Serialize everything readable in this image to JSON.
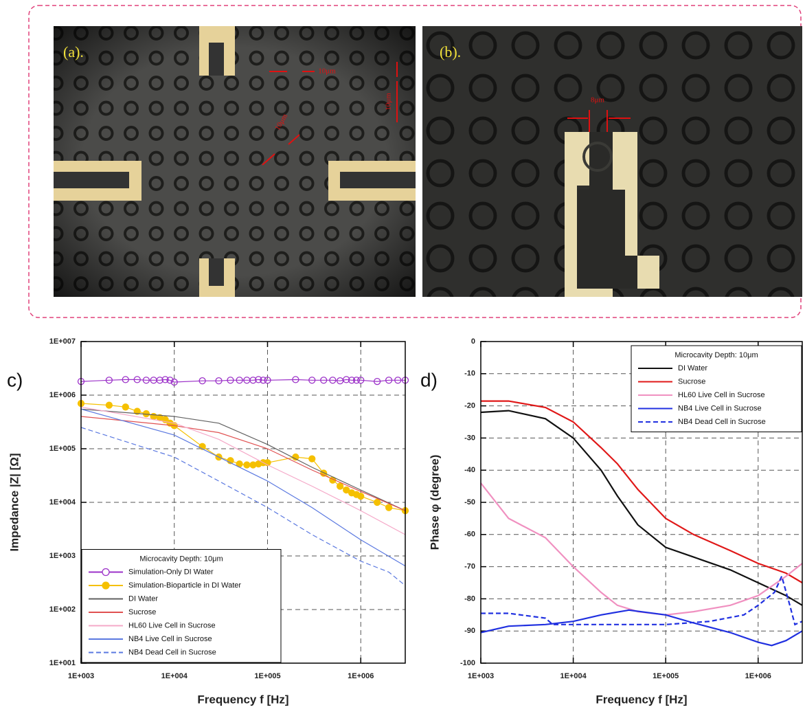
{
  "images": [
    {
      "label": "(a).",
      "annotations": [
        "10μm",
        "10μm",
        "10μm"
      ]
    },
    {
      "label": "(b).",
      "annotations": [
        "8μm"
      ]
    }
  ],
  "chart_data": [
    {
      "type": "line",
      "panel_label": "c)",
      "xlabel": "Frequency f [Hz]",
      "ylabel": "Impedance |Z| [Ω]",
      "xscale": "log",
      "yscale": "log",
      "grid": true,
      "legend": "lower left",
      "legend_title": "Microcavity Depth: 10μm",
      "xlim": [
        1000,
        3000000
      ],
      "ylim": [
        10,
        10000000
      ],
      "xticks": [
        {
          "value": 1000,
          "label": "1E+003"
        },
        {
          "value": 10000,
          "label": "1E+004"
        },
        {
          "value": 100000,
          "label": "1E+005"
        },
        {
          "value": 1000000,
          "label": "1E+006"
        }
      ],
      "yticks": [
        {
          "value": 10,
          "label": "1E+001"
        },
        {
          "value": 100,
          "label": "1E+002"
        },
        {
          "value": 1000,
          "label": "1E+003"
        },
        {
          "value": 10000,
          "label": "1E+004"
        },
        {
          "value": 100000,
          "label": "1E+005"
        },
        {
          "value": 1000000,
          "label": "1E+006"
        },
        {
          "value": 10000000,
          "label": "1E+007"
        }
      ],
      "series": [
        {
          "name": "Simulation-Only DI Water",
          "color": "#9b30c8",
          "marker": "open-circle",
          "x": [
            1000,
            2000,
            3000,
            4000,
            5000,
            6000,
            7000,
            8000,
            9000,
            10000,
            20000,
            30000,
            40000,
            50000,
            60000,
            70000,
            80000,
            90000,
            100000,
            200000,
            300000,
            400000,
            500000,
            600000,
            700000,
            800000,
            900000,
            1000000,
            1500000,
            2000000,
            2500000,
            3000000
          ],
          "values": [
            1800000,
            1900000,
            1950000,
            1950000,
            1900000,
            1900000,
            1900000,
            1950000,
            1900000,
            1750000,
            1850000,
            1850000,
            1900000,
            1900000,
            1900000,
            1900000,
            1950000,
            1900000,
            1900000,
            1950000,
            1900000,
            1900000,
            1900000,
            1850000,
            1950000,
            1900000,
            1900000,
            1900000,
            1800000,
            1900000,
            1900000,
            1900000
          ]
        },
        {
          "name": "Simulation-Bioparticle in DI Water",
          "color": "#f5c000",
          "marker": "filled-circle",
          "x": [
            1000,
            2000,
            3000,
            4000,
            5000,
            6000,
            7000,
            8000,
            9000,
            10000,
            20000,
            30000,
            40000,
            50000,
            60000,
            70000,
            80000,
            90000,
            100000,
            200000,
            300000,
            400000,
            500000,
            600000,
            700000,
            800000,
            900000,
            1000000,
            1500000,
            2000000,
            3000000
          ],
          "values": [
            700000,
            650000,
            600000,
            500000,
            450000,
            400000,
            380000,
            350000,
            300000,
            270000,
            110000,
            70000,
            60000,
            52000,
            50000,
            50000,
            52000,
            55000,
            55000,
            70000,
            65000,
            35000,
            26000,
            20000,
            17000,
            15000,
            14000,
            13000,
            10000,
            8000,
            7000
          ]
        },
        {
          "name": "DI Water",
          "color": "#606060",
          "x": [
            1000,
            10000,
            30000,
            100000,
            300000,
            1000000,
            3000000
          ],
          "values": [
            550000,
            400000,
            300000,
            120000,
            45000,
            17000,
            7000
          ]
        },
        {
          "name": "Sucrose",
          "color": "#e05050",
          "x": [
            1000,
            10000,
            30000,
            100000,
            300000,
            1000000,
            3000000
          ],
          "values": [
            400000,
            270000,
            200000,
            100000,
            40000,
            16000,
            7000
          ]
        },
        {
          "name": "HL60 Live Cell in Sucrose",
          "color": "#f5a8c8",
          "x": [
            1000,
            10000,
            30000,
            100000,
            300000,
            1000000,
            3000000
          ],
          "values": [
            600000,
            300000,
            150000,
            50000,
            20000,
            7000,
            2500
          ]
        },
        {
          "name": "NB4 Live Cell in Sucrose",
          "color": "#5a78e0",
          "x": [
            1000,
            10000,
            30000,
            100000,
            300000,
            1000000,
            3000000
          ],
          "values": [
            550000,
            180000,
            70000,
            25000,
            8000,
            2000,
            650
          ]
        },
        {
          "name": "NB4 Dead Cell in Sucrose",
          "color": "#5a78e0",
          "dash": true,
          "x": [
            1000,
            10000,
            30000,
            100000,
            300000,
            1000000,
            2000000,
            3000000
          ],
          "values": [
            250000,
            70000,
            25000,
            8000,
            2500,
            800,
            500,
            280
          ]
        }
      ]
    },
    {
      "type": "line",
      "panel_label": "d)",
      "xlabel": "Frequency f [Hz]",
      "ylabel": "Phase φ (degree)",
      "xscale": "log",
      "yscale": "linear",
      "grid": true,
      "legend": "upper right",
      "legend_title": "Microcavity Depth: 10μm",
      "xlim": [
        1000,
        3000000
      ],
      "ylim": [
        -100,
        0
      ],
      "xticks": [
        {
          "value": 1000,
          "label": "1E+003"
        },
        {
          "value": 10000,
          "label": "1E+004"
        },
        {
          "value": 100000,
          "label": "1E+005"
        },
        {
          "value": 1000000,
          "label": "1E+006"
        }
      ],
      "yticks": [
        -100,
        -90,
        -80,
        -70,
        -60,
        -50,
        -40,
        -30,
        -20,
        -10,
        0
      ],
      "series": [
        {
          "name": "DI Water",
          "color": "#111111",
          "x": [
            1000,
            2000,
            5000,
            10000,
            20000,
            30000,
            50000,
            100000,
            200000,
            500000,
            1000000,
            2000000,
            3000000
          ],
          "values": [
            -22,
            -21.5,
            -24,
            -30,
            -40,
            -48,
            -57,
            -64,
            -67,
            -71,
            -75,
            -79,
            -82
          ]
        },
        {
          "name": "Sucrose",
          "color": "#e01818",
          "x": [
            1000,
            2000,
            5000,
            10000,
            20000,
            30000,
            50000,
            100000,
            200000,
            500000,
            1000000,
            2000000,
            3000000
          ],
          "values": [
            -18.5,
            -18.5,
            -20.5,
            -25,
            -33,
            -38,
            -46,
            -55,
            -60,
            -65,
            -69,
            -72,
            -75
          ]
        },
        {
          "name": "HL60 Live Cell in Sucrose",
          "color": "#f090c0",
          "x": [
            1000,
            2000,
            5000,
            10000,
            20000,
            30000,
            50000,
            100000,
            200000,
            500000,
            1000000,
            2000000,
            3000000
          ],
          "values": [
            -44,
            -55,
            -61,
            -70,
            -78,
            -82,
            -84,
            -85,
            -84,
            -82,
            -79,
            -73,
            -69
          ]
        },
        {
          "name": "NB4 Live Cell in Sucrose",
          "color": "#2030e0",
          "x": [
            1000,
            2000,
            5000,
            10000,
            20000,
            40000,
            100000,
            200000,
            500000,
            1000000,
            1400000,
            2000000,
            3000000
          ],
          "values": [
            -90.5,
            -88.5,
            -88,
            -87,
            -85,
            -83.5,
            -85,
            -87.5,
            -90.5,
            -93.5,
            -94.5,
            -93,
            -90
          ]
        },
        {
          "name": "NB4 Dead Cell in Sucrose",
          "color": "#2030e0",
          "dash": true,
          "x": [
            1000,
            2000,
            5000,
            6000,
            10000,
            50000,
            100000,
            300000,
            700000,
            1000000,
            1500000,
            1800000,
            2200000,
            2500000,
            3000000
          ],
          "values": [
            -84.5,
            -84.5,
            -86,
            -88,
            -88,
            -88,
            -88,
            -87,
            -85,
            -82,
            -78,
            -73,
            -82,
            -88,
            -87
          ]
        }
      ]
    }
  ]
}
